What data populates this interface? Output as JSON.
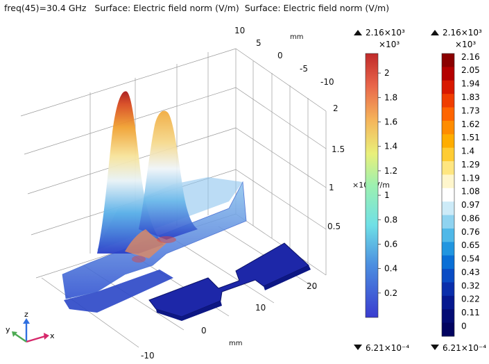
{
  "title": "freq(45)=30.4 GHz   Surface: Electric field norm (V/m)  Surface: Electric field norm (V/m)",
  "chart_data": {
    "type": "3d-surface",
    "quantity": "Electric field norm (V/m)",
    "frequency": "freq(45)=30.4 GHz",
    "peak_heights_e3": [
      2.1,
      1.8
    ],
    "depth_ticks": [
      "10",
      "5",
      "0",
      "-5",
      "-10"
    ],
    "depth_unit": "mm",
    "height_ticks": [
      "2",
      "1.5",
      "1",
      "0.5"
    ],
    "height_exponent": "×10³",
    "height_unit": "V/m",
    "x_ticks": [
      "20",
      "10",
      "0",
      "-10"
    ],
    "x_unit": "mm",
    "axis_triad": {
      "z": "z",
      "y": "y",
      "x": "x"
    },
    "colorbar_left": {
      "max_label": "2.16×10³",
      "multiplier": "×10³",
      "min_label": "6.21×10⁻⁴",
      "ticks": [
        "2",
        "1.8",
        "1.6",
        "1.4",
        "1.2",
        "1",
        "0.8",
        "0.6",
        "0.4",
        "0.2"
      ]
    },
    "colorbar_right": {
      "max_label": "2.16×10³",
      "multiplier": "×10³",
      "min_label": "6.21×10⁻⁴",
      "ticks": [
        "2.16",
        "2.05",
        "1.94",
        "1.83",
        "1.73",
        "1.62",
        "1.51",
        "1.4",
        "1.29",
        "1.19",
        "1.08",
        "0.97",
        "0.86",
        "0.76",
        "0.65",
        "0.54",
        "0.43",
        "0.32",
        "0.22",
        "0.11",
        "0"
      ],
      "colors": [
        "#8b0000",
        "#b40000",
        "#d81800",
        "#f03d00",
        "#ff6400",
        "#ff8c00",
        "#ffad00",
        "#ffcc33",
        "#ffe680",
        "#fff6cc",
        "#ffffff",
        "#cdebf8",
        "#8fd3f0",
        "#4fb8e8",
        "#2196e0",
        "#0a6fd6",
        "#0a4cc4",
        "#0a2eab",
        "#06188f",
        "#040c74",
        "#020460"
      ]
    }
  }
}
